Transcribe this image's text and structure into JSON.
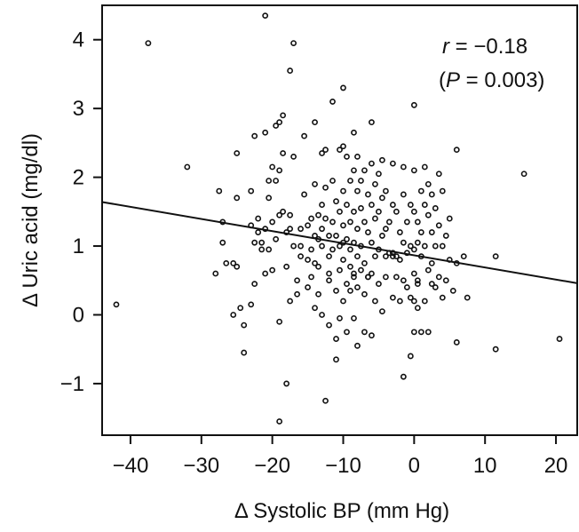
{
  "chart_data": {
    "type": "scatter",
    "title": "",
    "xlabel": "Δ Systolic BP (mm Hg)",
    "ylabel": "Δ Uric acid (mg/dl)",
    "xlim": [
      -44,
      23
    ],
    "ylim": [
      -1.75,
      4.5
    ],
    "xticks": [
      -40,
      -30,
      -20,
      -10,
      0,
      10,
      20
    ],
    "yticks": [
      -1,
      0,
      1,
      2,
      3,
      4
    ],
    "xtick_labels": [
      "−40",
      "−30",
      "−20",
      "−10",
      "0",
      "10",
      "20"
    ],
    "ytick_labels": [
      "−1",
      "0",
      "1",
      "2",
      "3",
      "4"
    ],
    "grid": false,
    "annotation": {
      "r_symbol": "r",
      "r_text": " = −0.18",
      "p_open": "(",
      "p_symbol": "P",
      "p_text": " = 0.003)"
    },
    "regression_line": {
      "x": [
        -44,
        23
      ],
      "y": [
        1.64,
        0.46
      ]
    },
    "points": [
      [
        -42,
        0.15
      ],
      [
        -37.5,
        3.95
      ],
      [
        -32,
        2.15
      ],
      [
        -28,
        0.6
      ],
      [
        -27.5,
        1.8
      ],
      [
        -27,
        1.05
      ],
      [
        -26.5,
        0.75
      ],
      [
        -27,
        1.35
      ],
      [
        -25.5,
        0.75
      ],
      [
        -25,
        0.7
      ],
      [
        -25,
        1.7
      ],
      [
        -25,
        2.35
      ],
      [
        -24.5,
        0.1
      ],
      [
        -24,
        -0.15
      ],
      [
        -24,
        -0.55
      ],
      [
        -25.5,
        0.0
      ],
      [
        -23,
        0.15
      ],
      [
        -23,
        1.3
      ],
      [
        -22.5,
        0.45
      ],
      [
        -22.5,
        2.6
      ],
      [
        -22.5,
        1.05
      ],
      [
        -22,
        1.4
      ],
      [
        -22,
        1.2
      ],
      [
        -21.5,
        0.95
      ],
      [
        -21,
        4.35
      ],
      [
        -21,
        2.65
      ],
      [
        -21,
        1.25
      ],
      [
        -21,
        0.6
      ],
      [
        -20.5,
        1.7
      ],
      [
        -20.5,
        1.95
      ],
      [
        -20.5,
        0.95
      ],
      [
        -20,
        1.35
      ],
      [
        -20,
        2.15
      ],
      [
        -20,
        0.65
      ],
      [
        -19.5,
        2.75
      ],
      [
        -19.5,
        1.95
      ],
      [
        -19.5,
        1.1
      ],
      [
        -19,
        2.1
      ],
      [
        -19,
        2.8
      ],
      [
        -19,
        1.45
      ],
      [
        -19,
        -0.1
      ],
      [
        -19,
        -1.55
      ],
      [
        -18.5,
        2.9
      ],
      [
        -18.5,
        1.5
      ],
      [
        -18.5,
        2.35
      ],
      [
        -18,
        1.2
      ],
      [
        -18,
        0.7
      ],
      [
        -18,
        -1.0
      ],
      [
        -17.5,
        3.55
      ],
      [
        -17.5,
        1.45
      ],
      [
        -17.5,
        1.25
      ],
      [
        -17.5,
        0.2
      ],
      [
        -17,
        3.95
      ],
      [
        -17,
        2.3
      ],
      [
        -17,
        1.0
      ],
      [
        -16.5,
        0.5
      ],
      [
        -16.5,
        0.3
      ],
      [
        -16,
        1.0
      ],
      [
        -16,
        1.25
      ],
      [
        -15.5,
        2.6
      ],
      [
        -15.5,
        1.75
      ],
      [
        -15,
        1.3
      ],
      [
        -15,
        0.8
      ],
      [
        -15,
        0.4
      ],
      [
        -14.5,
        1.4
      ],
      [
        -14.5,
        0.95
      ],
      [
        -14.5,
        0.55
      ],
      [
        -14,
        2.8
      ],
      [
        -14,
        1.9
      ],
      [
        -14,
        1.15
      ],
      [
        -14,
        0.75
      ],
      [
        -13.5,
        1.45
      ],
      [
        -13.5,
        1.1
      ],
      [
        -13.5,
        0.7
      ],
      [
        -13.5,
        0.3
      ],
      [
        -13,
        2.35
      ],
      [
        -13,
        1.6
      ],
      [
        -13,
        1.25
      ],
      [
        -13,
        1.0
      ],
      [
        -13,
        0.0
      ],
      [
        -12.5,
        -1.25
      ],
      [
        -12.5,
        2.4
      ],
      [
        -12.5,
        1.85
      ],
      [
        -12.5,
        1.4
      ],
      [
        -12,
        1.15
      ],
      [
        -12,
        0.85
      ],
      [
        -12,
        0.5
      ],
      [
        -12,
        -0.15
      ],
      [
        -11.5,
        3.1
      ],
      [
        -11.5,
        1.95
      ],
      [
        -11.5,
        1.35
      ],
      [
        -11.5,
        0.95
      ],
      [
        -11,
        1.65
      ],
      [
        -11,
        1.15
      ],
      [
        -11,
        0.35
      ],
      [
        -11,
        -0.35
      ],
      [
        -11,
        -0.65
      ],
      [
        -10.5,
        2.4
      ],
      [
        -10.5,
        1.5
      ],
      [
        -10.5,
        1.0
      ],
      [
        -10.5,
        0.65
      ],
      [
        -10.5,
        -0.05
      ],
      [
        -10,
        3.3
      ],
      [
        -10,
        2.45
      ],
      [
        -10,
        1.8
      ],
      [
        -10,
        1.3
      ],
      [
        -10,
        0.8
      ],
      [
        -10,
        0.2
      ],
      [
        -9.5,
        2.3
      ],
      [
        -9.5,
        1.6
      ],
      [
        -9.5,
        1.1
      ],
      [
        -9.5,
        0.45
      ],
      [
        -9.5,
        -0.25
      ],
      [
        -9,
        1.95
      ],
      [
        -9,
        1.35
      ],
      [
        -9,
        0.95
      ],
      [
        -9,
        0.7
      ],
      [
        -8.5,
        2.65
      ],
      [
        -8.5,
        2.1
      ],
      [
        -8.5,
        1.5
      ],
      [
        -8.5,
        1.05
      ],
      [
        -8.5,
        0.55
      ],
      [
        -8.5,
        -0.05
      ],
      [
        -8,
        2.3
      ],
      [
        -8,
        1.8
      ],
      [
        -8,
        1.25
      ],
      [
        -8,
        0.85
      ],
      [
        -8,
        0.4
      ],
      [
        -8,
        -0.45
      ],
      [
        -7.5,
        1.95
      ],
      [
        -7.5,
        1.55
      ],
      [
        -7.5,
        1.0
      ],
      [
        -7.5,
        0.65
      ],
      [
        -7,
        2.1
      ],
      [
        -7,
        1.35
      ],
      [
        -7,
        0.75
      ],
      [
        -7,
        0.3
      ],
      [
        -7,
        -0.25
      ],
      [
        -6.5,
        1.75
      ],
      [
        -6.5,
        1.2
      ],
      [
        -6.5,
        0.55
      ],
      [
        -6,
        2.8
      ],
      [
        -6,
        2.2
      ],
      [
        -6,
        1.6
      ],
      [
        -6,
        1.05
      ],
      [
        -6,
        0.6
      ],
      [
        -6,
        -0.3
      ],
      [
        -5.5,
        1.9
      ],
      [
        -5.5,
        1.4
      ],
      [
        -5.5,
        0.85
      ],
      [
        -5.5,
        0.2
      ],
      [
        -5,
        2.05
      ],
      [
        -5,
        1.5
      ],
      [
        -5,
        0.95
      ],
      [
        -5,
        0.45
      ],
      [
        -4.5,
        2.25
      ],
      [
        -4.5,
        1.7
      ],
      [
        -4.5,
        1.15
      ],
      [
        -4.5,
        0.05
      ],
      [
        -4,
        1.8
      ],
      [
        -4,
        1.25
      ],
      [
        -4,
        0.85
      ],
      [
        -4,
        0.55
      ],
      [
        -3.5,
        1.35
      ],
      [
        -3.5,
        0.9
      ],
      [
        -3,
        2.2
      ],
      [
        -3,
        1.6
      ],
      [
        -3,
        0.9
      ],
      [
        -3,
        0.25
      ],
      [
        -2.5,
        1.5
      ],
      [
        -2.5,
        0.85
      ],
      [
        -2.5,
        0.55
      ],
      [
        -2,
        1.2
      ],
      [
        -2,
        0.8
      ],
      [
        -2,
        0.2
      ],
      [
        -1.5,
        2.15
      ],
      [
        -1.5,
        1.75
      ],
      [
        -1.5,
        1.05
      ],
      [
        -1.5,
        0.5
      ],
      [
        -1.5,
        -0.9
      ],
      [
        -1,
        1.35
      ],
      [
        -1,
        0.9
      ],
      [
        -1,
        0.4
      ],
      [
        -0.5,
        1.6
      ],
      [
        -0.5,
        1.0
      ],
      [
        -0.5,
        0.25
      ],
      [
        -0.5,
        -0.6
      ],
      [
        0,
        3.05
      ],
      [
        0,
        2.1
      ],
      [
        0,
        1.5
      ],
      [
        0,
        0.95
      ],
      [
        0,
        0.6
      ],
      [
        0,
        0.2
      ],
      [
        0,
        -0.25
      ],
      [
        0.5,
        1.35
      ],
      [
        0.5,
        1.05
      ],
      [
        0.5,
        0.5
      ],
      [
        0.5,
        0.1
      ],
      [
        1,
        1.8
      ],
      [
        1,
        1.2
      ],
      [
        1,
        0.85
      ],
      [
        1,
        -0.25
      ],
      [
        1.5,
        2.15
      ],
      [
        1.5,
        1.6
      ],
      [
        1.5,
        1.0
      ],
      [
        1.5,
        0.2
      ],
      [
        2,
        1.9
      ],
      [
        2,
        1.45
      ],
      [
        2,
        0.65
      ],
      [
        2,
        -0.25
      ],
      [
        2.5,
        1.75
      ],
      [
        2.5,
        1.2
      ],
      [
        2.5,
        0.75
      ],
      [
        3,
        1.55
      ],
      [
        3,
        1.0
      ],
      [
        3,
        0.4
      ],
      [
        3.5,
        2.05
      ],
      [
        3.5,
        1.3
      ],
      [
        3.5,
        0.55
      ],
      [
        4,
        1.8
      ],
      [
        4,
        1.0
      ],
      [
        4,
        0.25
      ],
      [
        4.5,
        1.15
      ],
      [
        4.5,
        0.5
      ],
      [
        5,
        1.4
      ],
      [
        5,
        0.8
      ],
      [
        5.5,
        0.35
      ],
      [
        6,
        2.4
      ],
      [
        6,
        0.75
      ],
      [
        6,
        -0.4
      ],
      [
        7,
        0.85
      ],
      [
        7.5,
        0.25
      ],
      [
        11.5,
        0.85
      ],
      [
        11.5,
        -0.5
      ],
      [
        15.5,
        2.05
      ],
      [
        20.5,
        -0.35
      ],
      [
        -23,
        1.8
      ],
      [
        -21.5,
        1.05
      ],
      [
        -16,
        0.85
      ],
      [
        -8.5,
        0.6
      ],
      [
        -3,
        0.85
      ],
      [
        0.5,
        0.45
      ],
      [
        2.5,
        0.45
      ],
      [
        -14,
        0.1
      ],
      [
        -12,
        0.6
      ],
      [
        -6.5,
        0.55
      ],
      [
        -10,
        1.05
      ],
      [
        -9,
        0.35
      ]
    ]
  }
}
